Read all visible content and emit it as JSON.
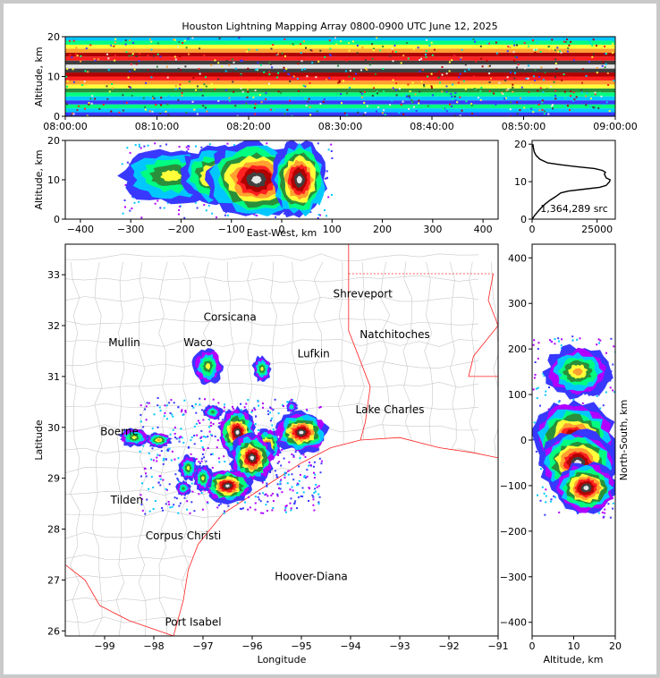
{
  "window": {
    "background": "#c9c9c9"
  },
  "title": "Houston Lightning Mapping Array 0800-0900 UTC June 12, 2025",
  "colors": {
    "density_scale": [
      "#3838ff",
      "#00c8ff",
      "#00ff80",
      "#2a8f3a",
      "#ffff3a",
      "#ffa030",
      "#ff2020",
      "#b00000",
      "#404040",
      "#e8e8e8"
    ],
    "state_border": "#ff2020",
    "county_border": "#c8c8c8",
    "city_highlight_orange": "#ff8c3a",
    "city_highlight_blue": "#2222ee"
  },
  "chart_data": [
    {
      "id": "altitude-time",
      "type": "heatmap",
      "ylabel": "Altitude, km",
      "ylim": [
        0,
        20
      ],
      "yticks": [
        "0",
        "10",
        "20"
      ],
      "xticks": [
        "08:00:00",
        "08:10:00",
        "08:20:00",
        "08:30:00",
        "08:40:00",
        "08:50:00",
        "09:00:00"
      ],
      "xlim_minutes": [
        0,
        60
      ]
    },
    {
      "id": "altitude-eastwest",
      "type": "heatmap",
      "xlabel": "East-West, km",
      "ylabel": "Altitude, km",
      "xlim": [
        -430,
        430
      ],
      "ylim": [
        0,
        20
      ],
      "xticks": [
        "−400",
        "−300",
        "−200",
        "−100",
        "0",
        "100",
        "200",
        "300",
        "400"
      ],
      "yticks": [
        "0",
        "10",
        "20"
      ]
    },
    {
      "id": "altitude-histogram",
      "type": "line",
      "xlim": [
        0,
        32000
      ],
      "ylim": [
        0,
        21
      ],
      "xticks": [
        "0",
        "25000"
      ],
      "yticks": [
        "0",
        "10",
        "20"
      ],
      "annotation": "1,364,289 src",
      "series": [
        {
          "points": [
            [
              0,
              0
            ],
            [
              1000,
              1
            ],
            [
              2200,
              2
            ],
            [
              3500,
              3
            ],
            [
              5000,
              4
            ],
            [
              6800,
              5
            ],
            [
              9000,
              6
            ],
            [
              11000,
              7
            ],
            [
              14000,
              7.5
            ],
            [
              20000,
              8
            ],
            [
              26000,
              8.5
            ],
            [
              28500,
              9
            ],
            [
              29800,
              10
            ],
            [
              30000,
              10.5
            ],
            [
              28500,
              11
            ],
            [
              27800,
              12
            ],
            [
              28200,
              12.5
            ],
            [
              27000,
              13
            ],
            [
              24000,
              13.5
            ],
            [
              17000,
              14
            ],
            [
              11000,
              14.5
            ],
            [
              6000,
              15
            ],
            [
              3000,
              16
            ],
            [
              1500,
              17
            ],
            [
              800,
              18
            ],
            [
              500,
              19
            ],
            [
              300,
              20
            ]
          ]
        }
      ]
    },
    {
      "id": "plan-view-map",
      "type": "heatmap",
      "xlabel": "Longitude",
      "ylabel": "Latitude",
      "xlim": [
        -99.8,
        -91
      ],
      "ylim": [
        25.9,
        33.6
      ],
      "xticks": [
        "−99",
        "−98",
        "−97",
        "−96",
        "−95",
        "−94",
        "−93",
        "−92",
        "−91"
      ],
      "yticks": [
        "26",
        "27",
        "28",
        "29",
        "30",
        "31",
        "32",
        "33"
      ]
    },
    {
      "id": "northsouth-altitude",
      "type": "heatmap",
      "xlabel": "Altitude, km",
      "ylabel": "North-South, km",
      "xlim": [
        0,
        20
      ],
      "ylim": [
        -430,
        430
      ],
      "xticks": [
        "0",
        "10",
        "20"
      ],
      "yticks": [
        "−400",
        "−300",
        "−200",
        "−100",
        "0",
        "100",
        "200",
        "300",
        "400"
      ]
    }
  ],
  "cities": [
    {
      "name": "Shreveport",
      "lon": -93.75,
      "lat": 32.55,
      "color": "#000000"
    },
    {
      "name": "Corsicana",
      "lon": -96.45,
      "lat": 32.1,
      "color": "#000000"
    },
    {
      "name": "Natchitoches",
      "lon": -93.1,
      "lat": 31.75,
      "color": "#000000"
    },
    {
      "name": "Mullin",
      "lon": -98.6,
      "lat": 31.6,
      "color": "#ff8c3a"
    },
    {
      "name": "Waco",
      "lon": -97.1,
      "lat": 31.6,
      "color": "#000000"
    },
    {
      "name": "Lufkin",
      "lon": -94.75,
      "lat": 31.38,
      "color": "#000000"
    },
    {
      "name": "Lake Charles",
      "lon": -93.2,
      "lat": 30.28,
      "color": "#000000"
    },
    {
      "name": "Boerne",
      "lon": -98.7,
      "lat": 29.85,
      "color": "#000000"
    },
    {
      "name": "Tilden",
      "lon": -98.55,
      "lat": 28.5,
      "color": "#000000"
    },
    {
      "name": "Corpus Christi",
      "lon": -97.4,
      "lat": 27.8,
      "color": "#000000"
    },
    {
      "name": "Hoover-Diana",
      "lon": -94.8,
      "lat": 27.0,
      "color": "#2222ee"
    },
    {
      "name": "Port Isabel",
      "lon": -97.2,
      "lat": 26.1,
      "color": "#000000"
    }
  ]
}
